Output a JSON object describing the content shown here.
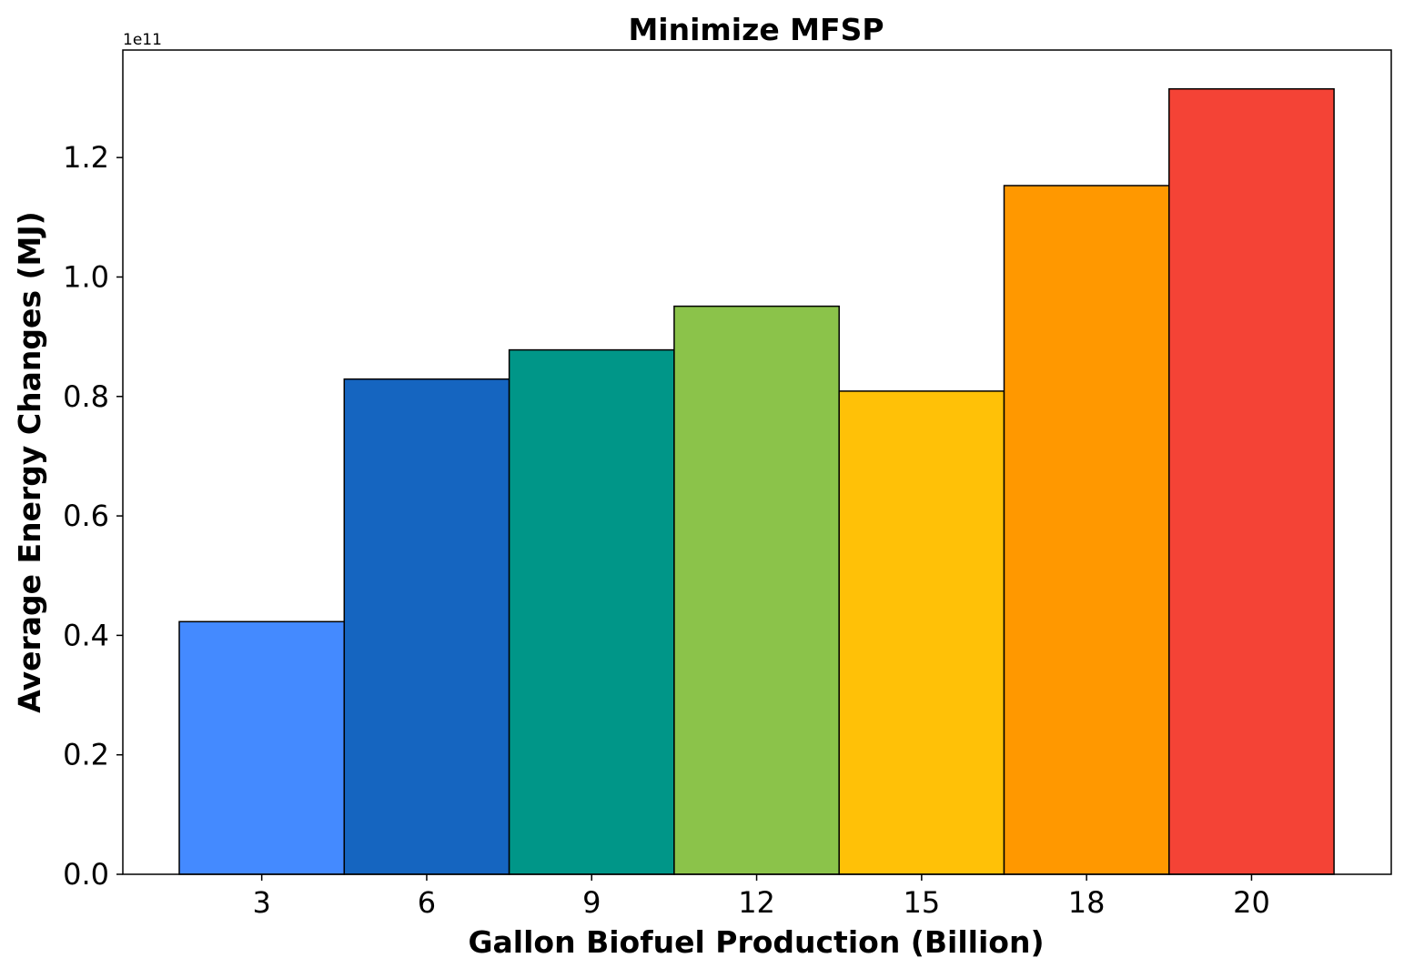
{
  "chart_data": {
    "type": "bar",
    "title": "Minimize MFSP",
    "xlabel": "Gallon Biofuel Production (Billion)",
    "ylabel": "Average Energy Changes (MJ)",
    "y_offset_label": "1e11",
    "y_scale": 100000000000,
    "categories": [
      "3",
      "6",
      "9",
      "12",
      "15",
      "18",
      "20"
    ],
    "values": [
      42300000000,
      82900000000,
      87800000000,
      95100000000,
      80900000000,
      115300000000,
      131500000000
    ],
    "colors": [
      "#448aff",
      "#1565c0",
      "#009688",
      "#8bc34a",
      "#ffc107",
      "#ff9800",
      "#f44336"
    ],
    "ylim": [
      0,
      138000000000
    ],
    "yticks": [
      0,
      20000000000,
      40000000000,
      60000000000,
      80000000000,
      100000000000,
      120000000000
    ],
    "ytick_labels": [
      "0.0",
      "0.2",
      "0.4",
      "0.6",
      "0.8",
      "1.0",
      "1.2"
    ],
    "grid": false,
    "legend": "none"
  }
}
